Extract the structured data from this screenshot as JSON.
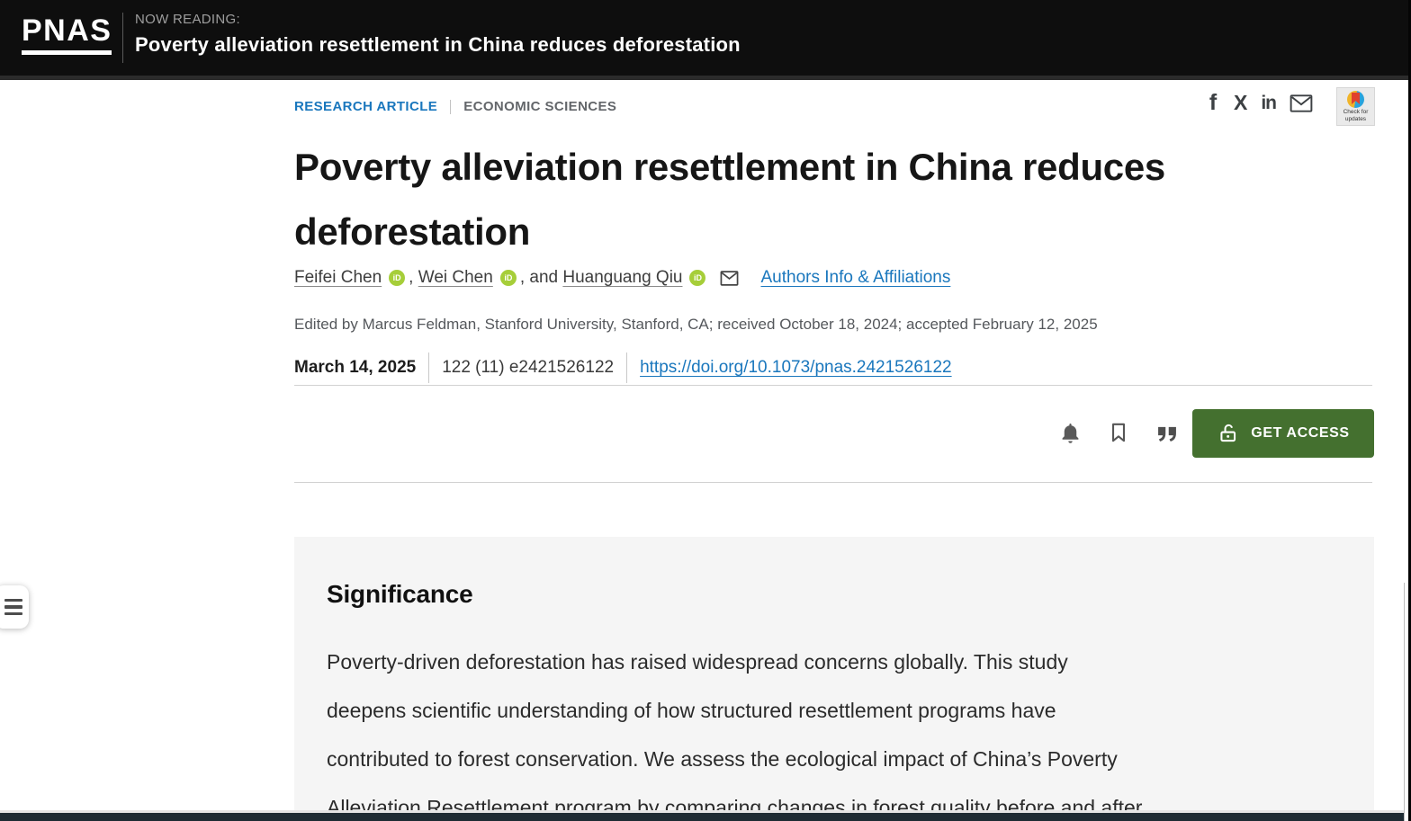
{
  "banner": {
    "logo": "PNAS",
    "now_reading_label": "NOW READING:",
    "now_reading_title": "Poverty alleviation resettlement in China reduces deforestation"
  },
  "eyebrow": {
    "article_type": "RESEARCH ARTICLE",
    "section": "ECONOMIC SCIENCES"
  },
  "share": {
    "facebook_glyph": "f",
    "x_glyph": "X",
    "linkedin_glyph": "in",
    "check_updates_line1": "Check for",
    "check_updates_line2": "updates"
  },
  "article": {
    "title": "Poverty alleviation resettlement in China reduces deforestation",
    "authors": [
      {
        "name": "Feifei Chen"
      },
      {
        "name": "Wei Chen"
      },
      {
        "name": "Huanguang Qiu"
      }
    ],
    "orcid_label": "iD",
    "sep_comma": ", ",
    "sep_and": ", and ",
    "authors_info_link": "Authors Info & Affiliations",
    "edited_line": "Edited by Marcus Feldman, Stanford University, Stanford, CA; received October 18, 2024; accepted February 12, 2025",
    "pub_date": "March 14, 2025",
    "volume_citation": "122 (11) e2421526122",
    "doi_link": "https://doi.org/10.1073/pnas.2421526122",
    "get_access_label": "GET ACCESS"
  },
  "significance": {
    "heading": "Significance",
    "body_lines": [
      "Poverty-driven deforestation has raised widespread concerns globally. This study",
      "deepens scientific understanding of how structured resettlement programs have",
      "contributed to forest conservation. We assess the ecological impact of China’s Poverty",
      "Alleviation Resettlement program by comparing changes in forest quality before and after"
    ]
  },
  "colors": {
    "accent_blue": "#1a77bd",
    "access_green": "#44702f",
    "orcid_green": "#a6ce39",
    "banner_black": "#0e0e0e"
  }
}
